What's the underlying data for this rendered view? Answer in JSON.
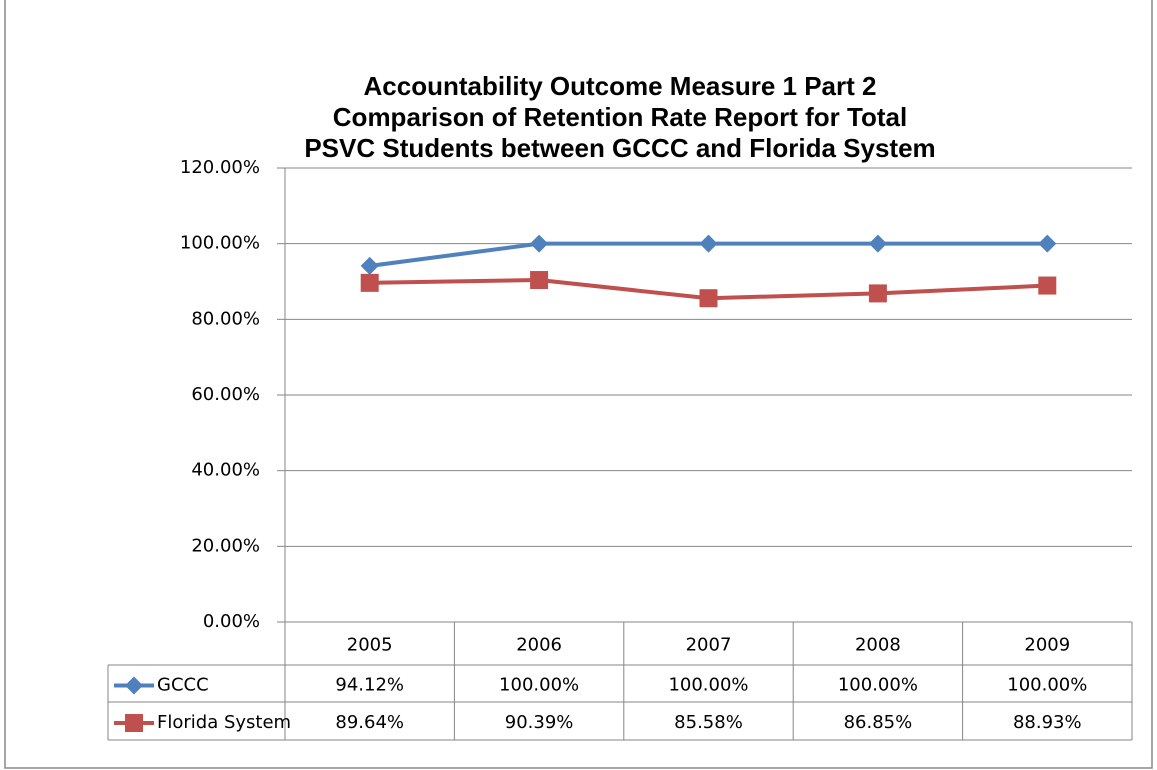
{
  "chart_data": {
    "type": "line",
    "title": [
      "Accountability Outcome Measure 1 Part 2",
      "Comparison of Retention Rate Report for Total",
      "PSVC Students between GCCC and Florida System"
    ],
    "categories": [
      "2005",
      "2006",
      "2007",
      "2008",
      "2009"
    ],
    "series": [
      {
        "name": "GCCC",
        "color": "#4f81bd",
        "marker": "diamond",
        "values": [
          94.12,
          100,
          100,
          100,
          100
        ],
        "value_labels": [
          "94.12%",
          "100.00%",
          "100.00%",
          "100.00%",
          "100.00%"
        ]
      },
      {
        "name": "Florida System",
        "color": "#c0504d",
        "marker": "square",
        "values": [
          89.64,
          90.39,
          85.58,
          86.85,
          88.93
        ],
        "value_labels": [
          "89.64%",
          "90.39%",
          "85.58%",
          "86.85%",
          "88.93%"
        ]
      }
    ],
    "ylim": [
      0,
      120
    ],
    "yticks": [
      {
        "value": 0,
        "label": "0.00%"
      },
      {
        "value": 20,
        "label": "20.00%"
      },
      {
        "value": 40,
        "label": "40.00%"
      },
      {
        "value": 60,
        "label": "60.00%"
      },
      {
        "value": 80,
        "label": "80.00%"
      },
      {
        "value": 100,
        "label": "100.00%"
      },
      {
        "value": 120,
        "label": "120.00%"
      }
    ],
    "grid": true
  }
}
